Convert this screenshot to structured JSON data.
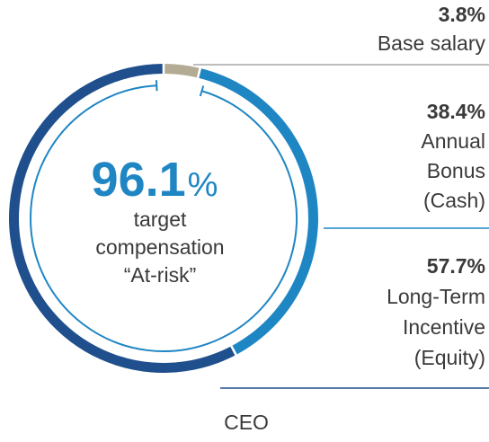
{
  "chart_data": {
    "type": "pie",
    "style": "donut",
    "categories": [
      "Base salary",
      "Annual Bonus (Cash)",
      "Long-Term Incentive (Equity)"
    ],
    "values": [
      3.8,
      38.4,
      57.7
    ],
    "colors": [
      "#b3ab93",
      "#1f86c4",
      "#1f4f8c"
    ],
    "center": {
      "value": "96.1",
      "unit": "%",
      "line1": "target",
      "line2": "compensation",
      "line3": "“At-risk”"
    },
    "legend": [
      {
        "pct": "3.8%",
        "lines": [
          "Base salary"
        ]
      },
      {
        "pct": "38.4%",
        "lines": [
          "Annual",
          "Bonus",
          "(Cash)"
        ]
      },
      {
        "pct": "57.7%",
        "lines": [
          "Long-Term",
          "Incentive",
          "(Equity)"
        ]
      }
    ],
    "caption": "CEO"
  }
}
